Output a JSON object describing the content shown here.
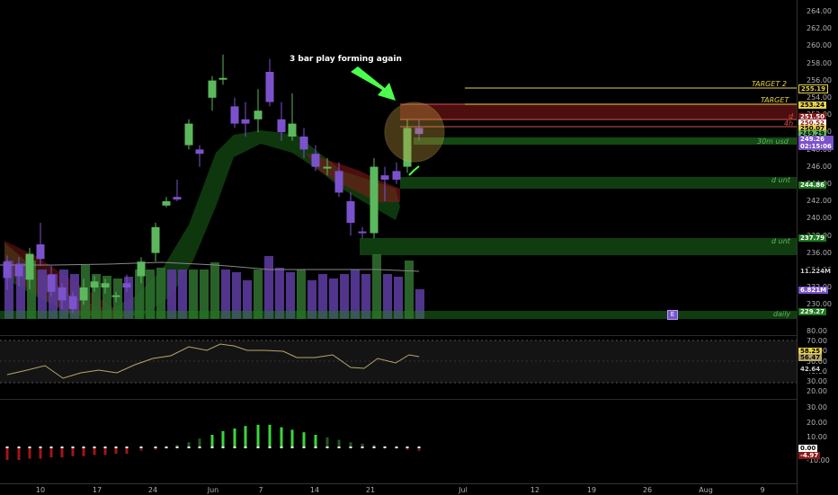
{
  "annotation": "3 bar play forming again",
  "zone_labels": {
    "target2": "TARGET 2",
    "target": "TARGET",
    "d": "d",
    "fourh": "4h",
    "m30": "30m usd",
    "d_unt1": "d unt",
    "d_unt2": "d unt",
    "daily": "daily"
  },
  "earnings_marker": "E",
  "price_axis": {
    "ticks": [
      "264.00",
      "262.00",
      "260.00",
      "258.00",
      "256.00",
      "254.00",
      "252.00",
      "250.00",
      "248.00",
      "246.00",
      "244.00",
      "242.00",
      "240.00",
      "238.00",
      "236.00",
      "234.00",
      "232.00",
      "230.00"
    ],
    "labels": {
      "p25519": "255.19",
      "p25324": "253.24",
      "p25150": "251.50",
      "p25052": "250.52",
      "p25007": "250.07",
      "p24929": "249.29",
      "p24926": "249.26",
      "cd": "02:15:06",
      "p24486": "244.86",
      "p23779": "237.79",
      "vol1": "11.224M",
      "vol2": "6.821M",
      "p22927": "229.27"
    }
  },
  "rsi_axis": {
    "ticks": [
      "80.00",
      "70.00",
      "60.00",
      "50.00",
      "40.00",
      "30.00",
      "20.00"
    ],
    "labels": {
      "a": "58.25",
      "b": "56.47",
      "c": "42.64"
    }
  },
  "macd_axis": {
    "ticks": [
      "30.00",
      "20.00",
      "10.00",
      "-10.00"
    ],
    "labels": {
      "zero": "0.00",
      "val": "-4.97"
    }
  },
  "time_axis": [
    "10",
    "17",
    "24",
    "Jun",
    "7",
    "14",
    "21",
    "Jul",
    "12",
    "19",
    "26",
    "Aug",
    "9"
  ],
  "colors": {
    "bull": "#5cb85c",
    "bear": "#7b52cc",
    "zone_green": "#1f7a1f",
    "zone_red": "#8b1a1a",
    "target_line": "#e8d24a",
    "rsi_line": "#b5a76c"
  }
}
